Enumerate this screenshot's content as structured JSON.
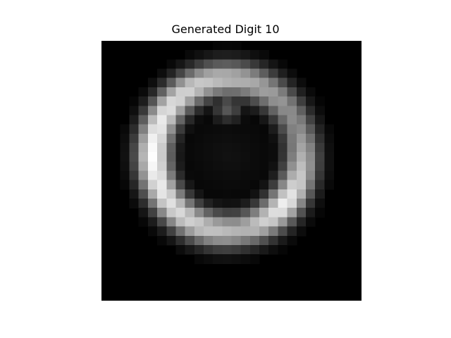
{
  "chart_data": {
    "type": "heatmap",
    "title": "Generated Digit 10",
    "colormap": "gray",
    "background_color": "#000000",
    "axes_visible": false,
    "grid": false,
    "vmin": 0,
    "vmax": 1,
    "rows": 28,
    "cols": 28,
    "ring": {
      "center_col": 13.6,
      "center_row": 12.3,
      "radius_cols": 8.0,
      "radius_rows": 8.2,
      "thickness": 1.35,
      "bright_arc_center_deg": 180,
      "peak_intensity": 1.0,
      "min_intensity": 0.45,
      "inner_floor": 0.07,
      "notch_col": 13.6,
      "notch_row": 7.2,
      "notch_intensity": 0.35
    }
  }
}
